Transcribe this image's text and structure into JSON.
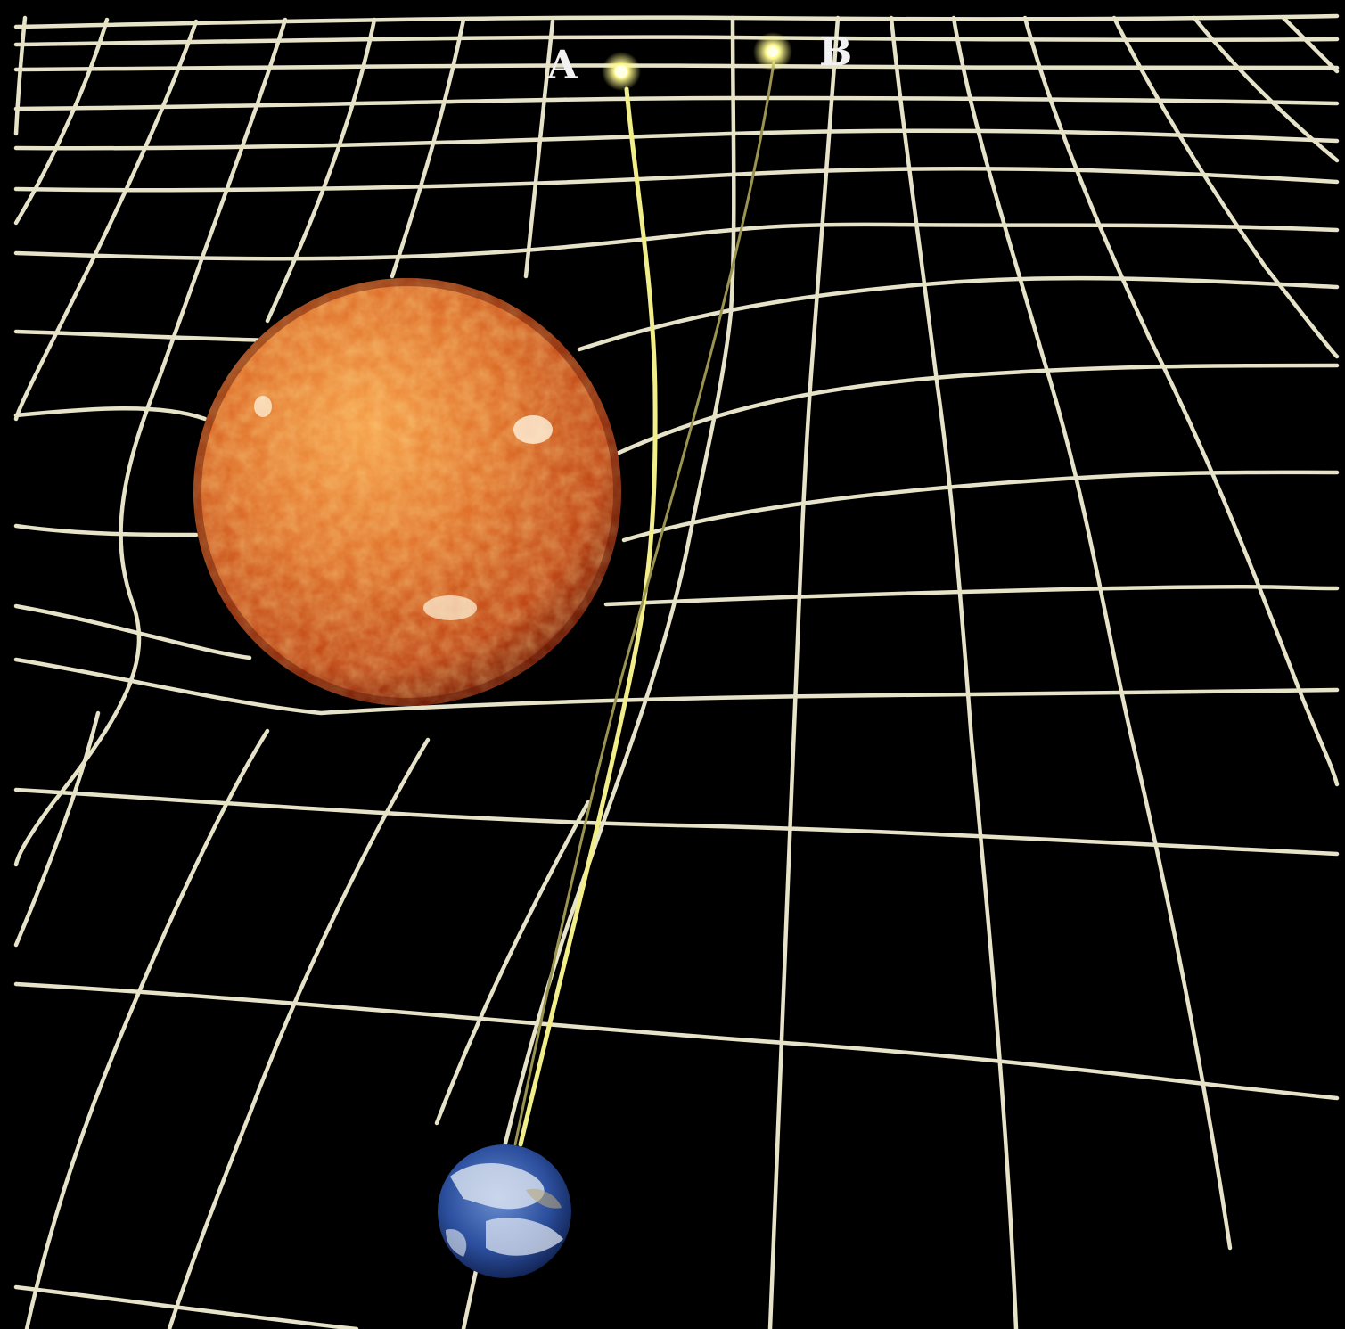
{
  "labels": {
    "star_a": "A",
    "star_b": "B"
  },
  "colors": {
    "background": "#000000",
    "grid_line": "#e6e3c9",
    "light_ray": "#f2ee8a",
    "star_glow": "#fffaa0",
    "sun_core": "#f08c3a",
    "sun_edge": "#7a1c08",
    "earth_ocean": "#2a4f9c",
    "earth_cloud": "#e8eef6"
  },
  "icons": {
    "sun": "sun-sphere-icon",
    "earth": "earth-globe-icon",
    "star": "star-point-icon"
  }
}
